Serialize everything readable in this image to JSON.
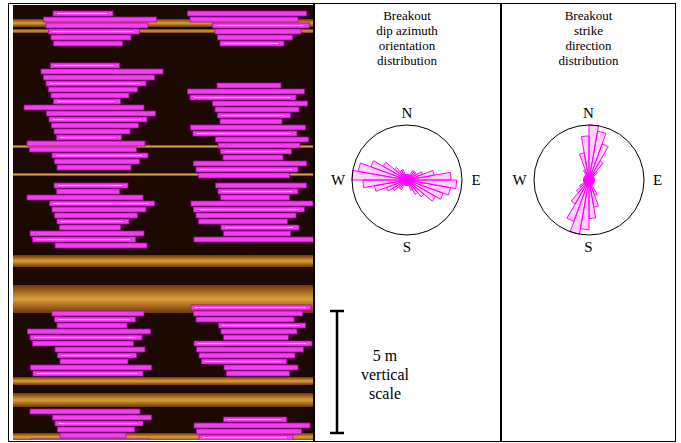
{
  "chart_data": [
    {
      "type": "rose",
      "title": "Breakout dip azimuth orientation distribution",
      "bins": [
        0,
        10,
        20,
        30,
        40,
        50,
        60,
        70,
        80,
        90,
        100,
        110,
        120,
        130,
        140,
        150,
        160,
        170,
        180,
        190,
        200,
        210,
        220,
        230,
        240,
        250,
        260,
        270,
        280,
        290,
        300,
        310,
        320,
        330,
        340,
        350,
        360
      ],
      "values": [
        1,
        1,
        1,
        2,
        2,
        2,
        3,
        5,
        8,
        9,
        8,
        7,
        6,
        4,
        3,
        2,
        1,
        1,
        1,
        1,
        1,
        2,
        2,
        3,
        4,
        6,
        8,
        10,
        9,
        7,
        5,
        3,
        2,
        2,
        1,
        1
      ],
      "rlim": [
        0,
        10
      ],
      "color": "#ff00ff",
      "direction_labels": [
        "N",
        "E",
        "S",
        "W"
      ],
      "tick_labels": false
    },
    {
      "type": "rose",
      "title": "Breakout strike direction distribution",
      "bins": [
        0,
        10,
        20,
        30,
        40,
        50,
        60,
        70,
        80,
        90,
        100,
        110,
        120,
        130,
        140,
        150,
        160,
        170,
        180,
        190,
        200,
        210,
        220,
        230,
        240,
        250,
        260,
        270,
        280,
        290,
        300,
        310,
        320,
        330,
        340,
        350,
        360
      ],
      "values": [
        10,
        9,
        7,
        4,
        2,
        1,
        1,
        1,
        1,
        1,
        1,
        1,
        1,
        1,
        1,
        3,
        5,
        7,
        9,
        10,
        8,
        5,
        3,
        2,
        1,
        1,
        1,
        1,
        1,
        1,
        1,
        1,
        1,
        2,
        5,
        8
      ],
      "rlim": [
        0,
        10
      ],
      "color": "#ff00ff",
      "direction_labels": [
        "N",
        "E",
        "S",
        "W"
      ],
      "tick_labels": false
    }
  ],
  "scale_bar": {
    "label": "5 m vertical scale"
  }
}
